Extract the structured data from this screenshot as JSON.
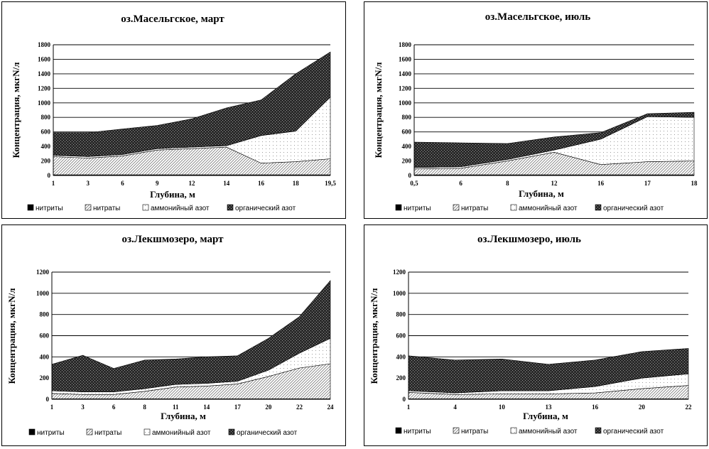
{
  "legend_labels": [
    "нитриты",
    "нитраты",
    "аммонийный азот",
    "органический азот"
  ],
  "chart_data": [
    {
      "type": "area",
      "stacked": true,
      "title": "оз.Масельгское, март",
      "xlabel": "Глубина, м",
      "ylabel": "Концентрация, мкгN/л",
      "categories": [
        "1",
        "3",
        "6",
        "9",
        "12",
        "14",
        "16",
        "18",
        "19,5"
      ],
      "ylim": [
        0,
        1800
      ],
      "yticks": [
        0,
        200,
        400,
        600,
        800,
        1000,
        1200,
        1400,
        1600,
        1800
      ],
      "series": [
        {
          "name": "нитриты",
          "values": [
            10,
            10,
            10,
            10,
            10,
            10,
            10,
            10,
            10
          ]
        },
        {
          "name": "нитраты",
          "values": [
            250,
            230,
            260,
            340,
            360,
            380,
            160,
            180,
            220
          ]
        },
        {
          "name": "аммонийный азот",
          "values": [
            20,
            20,
            20,
            20,
            20,
            20,
            380,
            420,
            850
          ]
        },
        {
          "name": "органический азот",
          "values": [
            310,
            330,
            350,
            320,
            390,
            520,
            490,
            790,
            620
          ]
        }
      ]
    },
    {
      "type": "area",
      "stacked": true,
      "title": "оз.Масельгское, июль",
      "xlabel": "Глубина, м",
      "ylabel": "Концентрация, мкгN/л",
      "categories": [
        "0,5",
        "6",
        "8",
        "12",
        "16",
        "17",
        "18"
      ],
      "ylim": [
        0,
        1800
      ],
      "yticks": [
        0,
        200,
        400,
        600,
        800,
        1000,
        1200,
        1400,
        1600,
        1800
      ],
      "series": [
        {
          "name": "нитриты",
          "values": [
            10,
            10,
            10,
            10,
            10,
            10,
            10
          ]
        },
        {
          "name": "нитраты",
          "values": [
            80,
            90,
            190,
            310,
            140,
            180,
            190
          ]
        },
        {
          "name": "аммонийный азот",
          "values": [
            20,
            20,
            20,
            30,
            350,
            620,
            600
          ]
        },
        {
          "name": "органический азот",
          "values": [
            350,
            330,
            220,
            180,
            90,
            40,
            70
          ]
        }
      ]
    },
    {
      "type": "area",
      "stacked": true,
      "title": "оз.Лекшмозеро, март",
      "xlabel": "Глубина, м",
      "ylabel": "Концентрация, мкгN/л",
      "categories": [
        "1",
        "3",
        "6",
        "8",
        "11",
        "14",
        "17",
        "20",
        "22",
        "24"
      ],
      "ylim": [
        0,
        1200
      ],
      "yticks": [
        0,
        200,
        400,
        600,
        800,
        1000,
        1200
      ],
      "series": [
        {
          "name": "нитриты",
          "values": [
            5,
            5,
            5,
            5,
            5,
            5,
            5,
            5,
            5,
            5
          ]
        },
        {
          "name": "нитраты",
          "values": [
            50,
            40,
            40,
            70,
            110,
            120,
            140,
            210,
            290,
            330
          ]
        },
        {
          "name": "аммонийный азот",
          "values": [
            25,
            25,
            25,
            25,
            25,
            25,
            25,
            60,
            140,
            240
          ]
        },
        {
          "name": "органический азот",
          "values": [
            250,
            345,
            220,
            270,
            240,
            250,
            240,
            300,
            345,
            545
          ]
        }
      ]
    },
    {
      "type": "area",
      "stacked": true,
      "title": "оз.Лекшмозеро, июль",
      "xlabel": "Глубина, м",
      "ylabel": "Концентрация, мкгN/л",
      "categories": [
        "1",
        "4",
        "10",
        "13",
        "16",
        "20",
        "22"
      ],
      "ylim": [
        0,
        1200
      ],
      "yticks": [
        0,
        200,
        400,
        600,
        800,
        1000,
        1200
      ],
      "series": [
        {
          "name": "нитриты",
          "values": [
            5,
            5,
            5,
            5,
            5,
            5,
            5
          ]
        },
        {
          "name": "нитраты",
          "values": [
            60,
            40,
            45,
            45,
            55,
            95,
            125
          ]
        },
        {
          "name": "аммонийный азот",
          "values": [
            15,
            15,
            30,
            30,
            60,
            100,
            110
          ]
        },
        {
          "name": "органический азот",
          "values": [
            330,
            310,
            300,
            250,
            250,
            250,
            240
          ]
        }
      ]
    }
  ]
}
